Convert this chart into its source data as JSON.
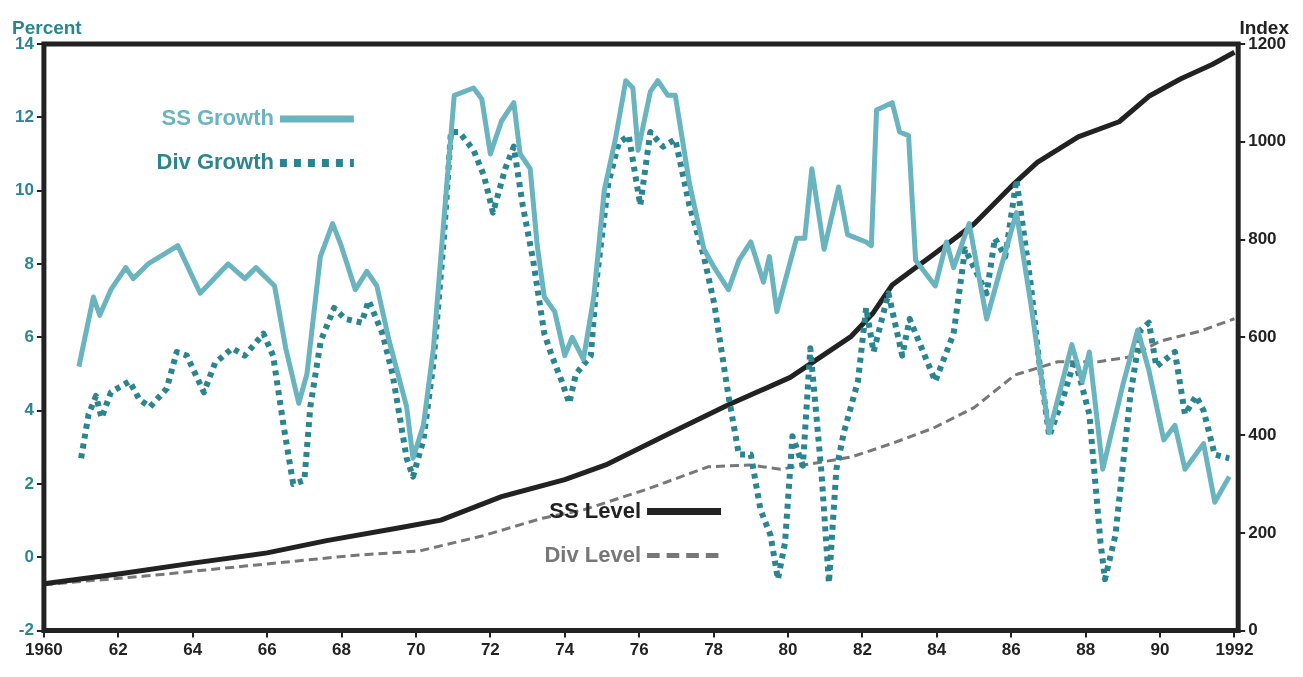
{
  "chart_data": {
    "type": "line",
    "ylabel": "Percent",
    "y2label": "Index",
    "xlim": [
      1960,
      1992.1
    ],
    "xticks": [
      {
        "value": 1960,
        "label": "1960"
      },
      {
        "value": 1962,
        "label": "62"
      },
      {
        "value": 1964,
        "label": "64"
      },
      {
        "value": 1966,
        "label": "66"
      },
      {
        "value": 1968,
        "label": "68"
      },
      {
        "value": 1970,
        "label": "70"
      },
      {
        "value": 1972,
        "label": "72"
      },
      {
        "value": 1974,
        "label": "74"
      },
      {
        "value": 1976,
        "label": "76"
      },
      {
        "value": 1978,
        "label": "78"
      },
      {
        "value": 1980,
        "label": "80"
      },
      {
        "value": 1982,
        "label": "82"
      },
      {
        "value": 1984,
        "label": "84"
      },
      {
        "value": 1986,
        "label": "86"
      },
      {
        "value": 1988,
        "label": "88"
      },
      {
        "value": 1990,
        "label": "90"
      },
      {
        "value": 1992,
        "label": "1992"
      }
    ],
    "ylim": [
      -2,
      14
    ],
    "yticks": [
      -2,
      0,
      2,
      4,
      6,
      8,
      10,
      12,
      14
    ],
    "y2lim": [
      0,
      1200
    ],
    "y2ticks": [
      0,
      200,
      400,
      600,
      800,
      1000,
      1200
    ],
    "grid": false,
    "legend": "top left",
    "marker": "none",
    "series": [
      {
        "name": "SS Growth",
        "color": "#6ab4bf",
        "line_style": "solid",
        "x": [
          1960.94,
          1961.33,
          1961.5,
          1961.8,
          1962.2,
          1962.4,
          1962.8,
          1963.6,
          1964.2,
          1964.95,
          1965.4,
          1965.7,
          1966.2,
          1966.5,
          1966.85,
          1967.07,
          1967.43,
          1967.76,
          1967.99,
          1968.37,
          1968.68,
          1968.95,
          1969.28,
          1969.75,
          1969.92,
          1970.2,
          1970.47,
          1970.75,
          1971.03,
          1971.55,
          1971.77,
          1972.0,
          1972.3,
          1972.63,
          1972.8,
          1973.07,
          1973.26,
          1973.45,
          1973.73,
          1974.0,
          1974.2,
          1974.5,
          1974.78,
          1975.06,
          1975.36,
          1975.64,
          1975.83,
          1975.97,
          1976.3,
          1976.5,
          1976.77,
          1976.97,
          1977.35,
          1977.74,
          1978.02,
          1978.4,
          1978.68,
          1979.0,
          1979.34,
          1979.5,
          1979.7,
          1980.23,
          1980.45,
          1980.64,
          1980.97,
          1981.36,
          1981.6,
          1982.1,
          1982.24,
          1982.38,
          1982.8,
          1983.0,
          1983.24,
          1983.43,
          1983.96,
          1984.26,
          1984.45,
          1984.87,
          1985.34,
          1985.75,
          1986.14,
          1986.53,
          1987.02,
          1987.63,
          1987.91,
          1988.1,
          1988.46,
          1989.0,
          1989.4,
          1989.7,
          1990.1,
          1990.4,
          1990.67,
          1991.17,
          1991.47,
          1991.86
        ],
        "values": [
          5.2,
          7.1,
          6.6,
          7.3,
          7.9,
          7.6,
          8.0,
          8.5,
          7.2,
          8.0,
          7.6,
          7.9,
          7.4,
          5.7,
          4.2,
          5.0,
          8.2,
          9.1,
          8.5,
          7.3,
          7.8,
          7.4,
          5.9,
          4.1,
          2.7,
          3.6,
          5.7,
          9.2,
          12.6,
          12.8,
          12.5,
          11.0,
          11.9,
          12.4,
          11.0,
          10.6,
          8.5,
          7.1,
          6.7,
          5.5,
          6.0,
          5.4,
          7.1,
          10.0,
          11.4,
          13.0,
          12.8,
          11.1,
          12.7,
          13.0,
          12.6,
          12.6,
          10.2,
          8.4,
          7.9,
          7.3,
          8.1,
          8.6,
          7.5,
          8.2,
          6.7,
          8.7,
          8.7,
          10.6,
          8.4,
          10.1,
          8.8,
          8.6,
          8.5,
          12.2,
          12.4,
          11.6,
          11.5,
          8.1,
          7.4,
          8.6,
          7.9,
          9.1,
          6.5,
          8.0,
          9.4,
          6.9,
          3.4,
          5.8,
          4.8,
          5.6,
          2.4,
          4.7,
          6.2,
          5.1,
          3.2,
          3.6,
          2.4,
          3.1,
          1.5,
          2.2
        ]
      },
      {
        "name": "Div Growth",
        "color": "#2a8590",
        "line_style": "dotted",
        "x": [
          1961.0,
          1961.2,
          1961.4,
          1961.55,
          1961.8,
          1962.3,
          1962.57,
          1962.85,
          1963.3,
          1963.57,
          1963.84,
          1964.3,
          1964.6,
          1965.06,
          1965.4,
          1965.9,
          1966.16,
          1966.44,
          1966.7,
          1967.0,
          1967.16,
          1967.44,
          1967.8,
          1968.1,
          1968.54,
          1968.73,
          1969.1,
          1969.37,
          1969.75,
          1969.92,
          1970.2,
          1970.47,
          1970.75,
          1970.94,
          1971.16,
          1971.55,
          1971.83,
          1972.07,
          1972.4,
          1972.63,
          1972.87,
          1973.15,
          1973.45,
          1973.65,
          1973.92,
          1974.12,
          1974.3,
          1974.7,
          1974.86,
          1975.17,
          1975.45,
          1975.72,
          1976.03,
          1976.3,
          1976.64,
          1976.97,
          1977.35,
          1977.74,
          1978.02,
          1978.4,
          1978.68,
          1979.0,
          1979.26,
          1979.53,
          1979.73,
          1979.92,
          1980.12,
          1980.4,
          1980.6,
          1980.9,
          1981.1,
          1981.3,
          1981.5,
          1981.88,
          1982.1,
          1982.3,
          1982.7,
          1983.07,
          1983.27,
          1983.96,
          1984.45,
          1984.76,
          1985.34,
          1985.56,
          1985.84,
          1986.14,
          1986.53,
          1986.72,
          1987.02,
          1987.41,
          1987.71,
          1988.1,
          1988.4,
          1988.52,
          1988.8,
          1989.2,
          1989.48,
          1989.7,
          1989.9,
          1990.4,
          1990.67,
          1990.97,
          1991.17,
          1991.47,
          1991.86
        ],
        "values": [
          2.7,
          3.9,
          4.4,
          3.8,
          4.5,
          4.8,
          4.3,
          4.1,
          4.6,
          5.6,
          5.5,
          4.5,
          5.3,
          5.7,
          5.5,
          6.1,
          5.5,
          3.6,
          2.0,
          2.1,
          4.1,
          5.9,
          6.8,
          6.5,
          6.4,
          7.0,
          6.1,
          5.0,
          2.7,
          2.2,
          3.2,
          5.3,
          8.7,
          11.6,
          11.6,
          11.1,
          10.4,
          9.4,
          10.6,
          11.2,
          9.6,
          8.1,
          6.1,
          5.5,
          4.8,
          4.2,
          5.0,
          5.5,
          7.6,
          10.2,
          11.3,
          11.5,
          9.6,
          11.6,
          11.2,
          11.4,
          9.6,
          8.2,
          6.9,
          4.4,
          2.8,
          2.8,
          1.3,
          0.6,
          -0.6,
          0.4,
          3.3,
          2.5,
          5.7,
          2.3,
          -0.7,
          2.4,
          3.4,
          4.8,
          6.8,
          5.6,
          7.2,
          5.5,
          6.5,
          4.8,
          6.1,
          8.4,
          7.2,
          8.7,
          8.2,
          10.3,
          7.4,
          5.6,
          3.3,
          4.4,
          5.4,
          3.9,
          0.4,
          -0.6,
          0.6,
          4.4,
          6.2,
          6.4,
          5.2,
          5.6,
          3.9,
          4.4,
          4.0,
          2.8,
          2.7
        ]
      },
      {
        "name": "SS Level",
        "color": "#222222",
        "line_style": "solid",
        "axis": "y2",
        "x": [
          1960,
          1962.1,
          1964.0,
          1966.0,
          1967.6,
          1969.6,
          1970.67,
          1972.3,
          1974.0,
          1975.1,
          1976.7,
          1978.4,
          1980.06,
          1981.7,
          1982.27,
          1982.8,
          1983.9,
          1985.0,
          1986.1,
          1986.7,
          1987.8,
          1988.9,
          1989.7,
          1990.56,
          1991.4,
          1992.0
        ],
        "values": [
          96,
          117,
          138,
          159,
          184,
          211,
          226,
          274,
          309,
          339,
          399,
          462,
          518,
          602,
          648,
          707,
          769,
          832,
          916,
          958,
          1010,
          1041,
          1093,
          1129,
          1158,
          1183
        ]
      },
      {
        "name": "Div Level",
        "color": "#777777",
        "line_style": "dashed",
        "axis": "y2",
        "x": [
          1960,
          1962.65,
          1965.4,
          1968.2,
          1970.1,
          1971.8,
          1973.4,
          1974.5,
          1976.2,
          1977.85,
          1978.96,
          1979.8,
          1980.6,
          1981.7,
          1982.8,
          1983.9,
          1985.0,
          1986.1,
          1987.25,
          1988.35,
          1989.2,
          1990.0,
          1991.1,
          1992.0
        ],
        "values": [
          94,
          111,
          132,
          153,
          163,
          194,
          230,
          247,
          289,
          335,
          339,
          330,
          341,
          355,
          383,
          414,
          456,
          523,
          550,
          550,
          560,
          592,
          613,
          638
        ]
      }
    ]
  }
}
